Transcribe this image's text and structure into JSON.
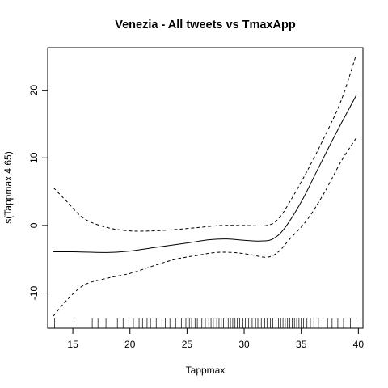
{
  "chart_data": {
    "type": "line",
    "title": "Venezia - All tweets vs TmaxApp",
    "xlabel": "Tappmax",
    "ylabel": "s(Tappmax,4.65)",
    "xlim": [
      12.8,
      40.4
    ],
    "ylim": [
      -15.2,
      26.3
    ],
    "x_ticks": [
      15,
      20,
      25,
      30,
      35,
      40
    ],
    "y_ticks": [
      -10,
      0,
      10,
      20
    ],
    "grid": false,
    "series": [
      {
        "role": "fit",
        "line_style": "solid",
        "x": [
          13.3,
          15,
          18,
          20,
          22,
          25,
          27,
          28.5,
          30,
          31.5,
          32.5,
          33.5,
          35,
          36.5,
          38,
          39.8
        ],
        "y": [
          -3.9,
          -3.9,
          -4.0,
          -3.8,
          -3.3,
          -2.6,
          -2.1,
          -2.0,
          -2.2,
          -2.3,
          -2.0,
          -0.5,
          3.5,
          8.5,
          13.5,
          19.2
        ]
      },
      {
        "role": "upper-band",
        "line_style": "dashed",
        "x": [
          13.3,
          14.5,
          16,
          18,
          20,
          22,
          24,
          26,
          28,
          30,
          32,
          33,
          34,
          35.5,
          37,
          38.5,
          39.8
        ],
        "y": [
          5.6,
          3.5,
          1.0,
          -0.3,
          -0.8,
          -0.8,
          -0.6,
          -0.3,
          0.0,
          0.0,
          0.0,
          1.0,
          3.5,
          8.0,
          13.0,
          18.5,
          25.2
        ]
      },
      {
        "role": "lower-band",
        "line_style": "dashed",
        "x": [
          13.3,
          14.5,
          16,
          18,
          20,
          22,
          24,
          26,
          27.5,
          29,
          30.5,
          32,
          33,
          34,
          35.5,
          37,
          38.5,
          39.8
        ],
        "y": [
          -13.4,
          -11.0,
          -8.8,
          -7.8,
          -7.1,
          -6.0,
          -5.0,
          -4.4,
          -4.0,
          -4.0,
          -4.3,
          -4.7,
          -3.9,
          -2.0,
          0.8,
          4.8,
          9.5,
          12.9
        ]
      }
    ],
    "rug": [
      13.4,
      15.1,
      16.7,
      17.2,
      17.9,
      18.9,
      19.4,
      19.9,
      20.3,
      20.8,
      21.1,
      21.5,
      21.8,
      22.3,
      22.8,
      23.1,
      23.5,
      24.0,
      24.5,
      24.9,
      25.2,
      25.4,
      25.7,
      25.9,
      26.3,
      26.6,
      26.9,
      27.1,
      27.3,
      27.6,
      27.8,
      28.0,
      28.2,
      28.4,
      28.6,
      28.8,
      29.0,
      29.2,
      29.4,
      29.6,
      29.9,
      30.1,
      30.4,
      30.7,
      31.0,
      31.2,
      31.5,
      31.8,
      32.0,
      32.3,
      32.5,
      32.8,
      33.0,
      33.2,
      33.4,
      33.6,
      33.8,
      34.0,
      34.2,
      34.4,
      34.6,
      34.8,
      35.0,
      35.2,
      35.5,
      35.8,
      36.1,
      36.5,
      36.9,
      37.3,
      37.7,
      38.2,
      38.7,
      39.3,
      39.8
    ]
  }
}
